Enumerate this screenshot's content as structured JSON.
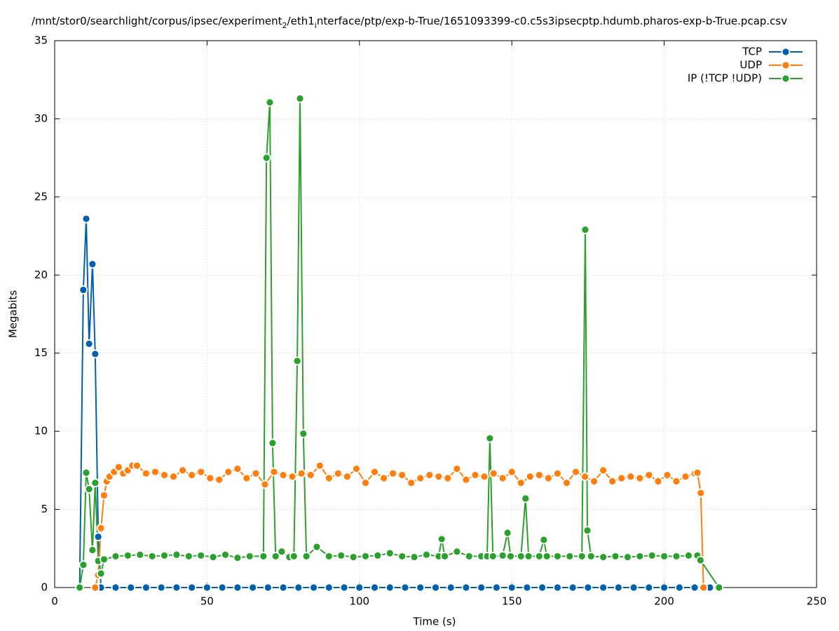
{
  "chart_data": {
    "type": "line",
    "title": [
      "/mnt/stor0/searchlight/corpus/ipsec/experiment",
      "2",
      "/eth1",
      "i",
      "nterface/ptp/exp-b-True/1651093399-c0.c5s3ipsecptp.hdumb.pharos-exp-b-True.pcap.csv"
    ],
    "xlabel": "Time (s)",
    "ylabel": "Megabits",
    "xlim": [
      0,
      250
    ],
    "xticks": [
      0,
      50,
      100,
      150,
      200,
      250
    ],
    "ylim": [
      0,
      35
    ],
    "yticks": [
      0,
      5,
      10,
      15,
      20,
      25,
      30,
      35
    ],
    "grid": true,
    "legend": "top-right",
    "series": [
      {
        "name": "TCP",
        "color": "#0060ad",
        "x": [
          8.2,
          9.4,
          10.35,
          11.3,
          12.4,
          13.3,
          14.3,
          15.2,
          20,
          25,
          30,
          35,
          40,
          45,
          50,
          55,
          60,
          65,
          70,
          75,
          80,
          85,
          90,
          95,
          100,
          105,
          110,
          115,
          120,
          125,
          130,
          135,
          140,
          145,
          150,
          155,
          160,
          165,
          170,
          175,
          180,
          185,
          190,
          195,
          200,
          205,
          210,
          215
        ],
        "values": [
          0,
          19.05,
          23.6,
          15.6,
          20.7,
          14.95,
          3.25,
          0,
          0,
          0,
          0,
          0,
          0,
          0,
          0,
          0,
          0,
          0,
          0,
          0,
          0,
          0,
          0,
          0,
          0,
          0,
          0,
          0,
          0,
          0,
          0,
          0,
          0,
          0,
          0,
          0,
          0,
          0,
          0,
          0,
          0,
          0,
          0,
          0,
          0,
          0,
          0,
          0
        ]
      },
      {
        "name": "UDP",
        "color": "#ff7f0e",
        "x": [
          13.3,
          14.3,
          15.2,
          16.2,
          17.1,
          18,
          19.5,
          21,
          22.5,
          24,
          25.5,
          27,
          30,
          33,
          36,
          39,
          42,
          45,
          48,
          51,
          54,
          57,
          60,
          63,
          66,
          69,
          72,
          75,
          78,
          81,
          84,
          87,
          90,
          93,
          96,
          99,
          102,
          105,
          108,
          111,
          114,
          117,
          120,
          123,
          126,
          129,
          132,
          135,
          138,
          141,
          144,
          147,
          150,
          153,
          156,
          159,
          162,
          165,
          168,
          171,
          174,
          177,
          180,
          183,
          186,
          189,
          192,
          195,
          198,
          201,
          204,
          207,
          210,
          210.9,
          212,
          212.9
        ],
        "values": [
          0,
          0.8,
          3.8,
          5.9,
          6.8,
          7.1,
          7.4,
          7.7,
          7.3,
          7.5,
          7.8,
          7.8,
          7.3,
          7.4,
          7.2,
          7.1,
          7.5,
          7.2,
          7.4,
          7.0,
          6.9,
          7.4,
          7.6,
          7.0,
          7.3,
          6.6,
          7.4,
          7.2,
          7.1,
          7.3,
          7.2,
          7.8,
          7.0,
          7.3,
          7.1,
          7.6,
          6.7,
          7.4,
          7.0,
          7.3,
          7.2,
          6.7,
          7.0,
          7.2,
          7.1,
          7.0,
          7.6,
          6.9,
          7.2,
          7.1,
          7.3,
          7.0,
          7.4,
          6.7,
          7.1,
          7.2,
          7.0,
          7.3,
          6.7,
          7.4,
          7.1,
          6.8,
          7.5,
          6.8,
          7.0,
          7.1,
          7.0,
          7.2,
          6.8,
          7.2,
          6.8,
          7.1,
          7.3,
          7.35,
          6.05,
          0
        ]
      },
      {
        "name": "IP (!TCP  !UDP)",
        "color": "#2ca02c",
        "x": [
          8.2,
          9.4,
          10.35,
          11.3,
          12.4,
          13.3,
          14.3,
          15.2,
          16.2,
          20,
          24,
          28,
          32,
          36,
          40,
          44,
          48,
          52,
          56,
          60,
          64,
          68.5,
          69.5,
          70.6,
          71.5,
          72.5,
          74.5,
          77,
          78.5,
          79.6,
          80.5,
          81.6,
          82.6,
          86,
          90,
          94,
          98,
          102,
          106,
          110,
          114,
          118,
          122,
          126,
          127,
          128,
          132,
          136,
          140,
          141.9,
          142.8,
          143.8,
          147,
          148.6,
          149.6,
          153,
          154.5,
          155.5,
          159,
          160.5,
          161.5,
          165,
          169,
          173,
          174.1,
          174.8,
          176,
          180,
          184,
          188,
          192,
          196,
          200,
          204,
          208,
          210.9,
          211.9,
          218
        ],
        "values": [
          0,
          1.45,
          7.35,
          6.3,
          2.4,
          6.7,
          1.7,
          0.9,
          1.8,
          2.0,
          2.05,
          2.1,
          2.0,
          2.05,
          2.1,
          2.0,
          2.05,
          1.95,
          2.1,
          1.9,
          2.0,
          2.0,
          27.5,
          31.05,
          9.25,
          2.0,
          2.3,
          1.95,
          2.0,
          14.5,
          31.3,
          9.85,
          2.0,
          2.6,
          2.0,
          2.05,
          1.95,
          2.0,
          2.05,
          2.2,
          2.0,
          1.95,
          2.1,
          2.0,
          3.1,
          2.0,
          2.3,
          2.0,
          2.0,
          2.0,
          9.55,
          2.0,
          2.05,
          3.5,
          2.0,
          2.0,
          5.7,
          2.0,
          2.0,
          3.05,
          2.0,
          2.0,
          2.0,
          2.0,
          22.9,
          3.65,
          2.0,
          1.95,
          2.0,
          1.95,
          2.0,
          2.05,
          2.0,
          2.0,
          2.05,
          2.05,
          1.75,
          0
        ]
      }
    ]
  }
}
